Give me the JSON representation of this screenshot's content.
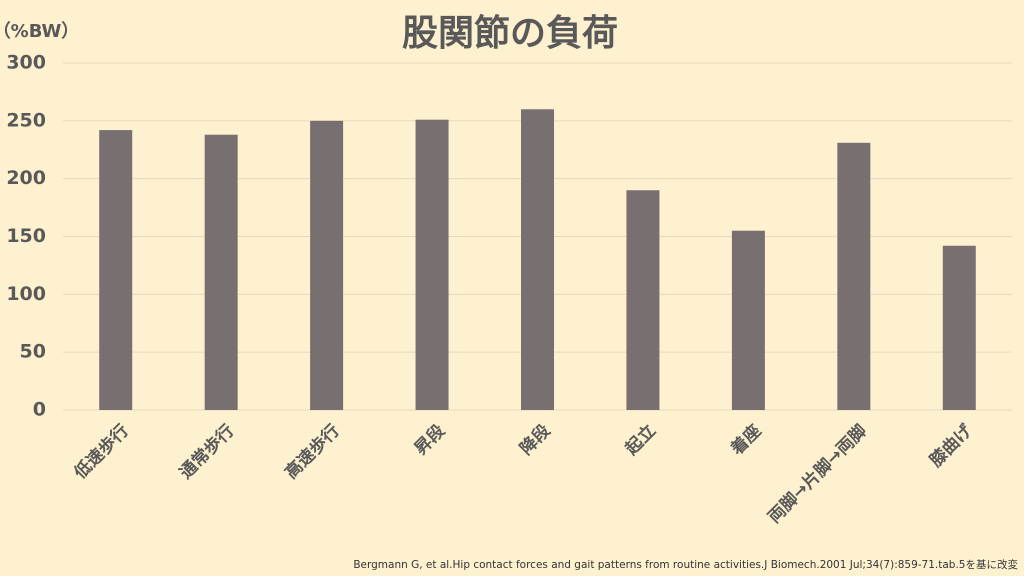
{
  "chart_data": {
    "type": "bar",
    "title": "股関節の負荷",
    "y_label": "（%BW）",
    "categories": [
      "低速歩行",
      "通常歩行",
      "高速歩行",
      "昇段",
      "降段",
      "起立",
      "着座",
      "両脚→片脚→両脚",
      "膝曲げ"
    ],
    "values": [
      242,
      238,
      250,
      251,
      260,
      190,
      155,
      231,
      142
    ],
    "color": "#787070",
    "ylim": [
      0,
      300
    ],
    "yticks": [
      0,
      50,
      100,
      150,
      200,
      250,
      300
    ],
    "grid": true,
    "source": "Bergmann G, et al.Hip contact forces and gait patterns from routine activities.J Biomech.2001 Jul;34(7):859-71.tab.5を基に改変"
  }
}
